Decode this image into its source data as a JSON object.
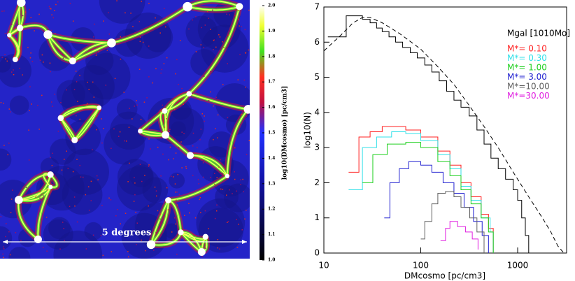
{
  "chart_data": [
    {
      "type": "image",
      "annotation": "5 degrees",
      "colorbar": {
        "label": "log10(DMcosmo) [pc/cm3]",
        "lim": [
          1,
          2
        ],
        "ticks": [
          {
            "value": 1,
            "label": "1.0"
          },
          1.1,
          1.2,
          1.3,
          1.4,
          1.5,
          1.6,
          1.7,
          1.8,
          1.9,
          {
            "value": 2,
            "label": "2.0"
          }
        ]
      }
    },
    {
      "type": "line",
      "step": true,
      "log_x": true,
      "xlabel": "DMcosmo [pc/cm3]",
      "ylabel": "log10(N)",
      "legend_title": "Mgal [1010Mo]",
      "xlim": [
        10,
        3200
      ],
      "xticks": [
        10,
        100,
        1000
      ],
      "ylim": [
        0,
        7
      ],
      "yticks": [
        0,
        1,
        2,
        3,
        4,
        5,
        6,
        7
      ],
      "series": [
        {
          "color": "#000000",
          "x": [
            11,
            17,
            25,
            30,
            35,
            40,
            47,
            55,
            65,
            78,
            92,
            110,
            130,
            155,
            185,
            220,
            260,
            316,
            380,
            450,
            530,
            630,
            750,
            900,
            1000,
            1100,
            1200,
            1300
          ],
          "values": [
            6.15,
            6.75,
            6.65,
            6.55,
            6.4,
            6.3,
            6.15,
            6.0,
            5.85,
            5.7,
            5.55,
            5.35,
            5.15,
            4.9,
            4.6,
            4.35,
            4.15,
            3.9,
            3.5,
            3.1,
            2.7,
            2.4,
            2.1,
            1.8,
            1.5,
            1.0,
            0.5,
            0
          ]
        },
        {
          "color": "#000000",
          "dashed": true,
          "x": [
            10,
            15,
            20,
            25,
            30,
            40,
            60,
            100,
            150,
            220,
            316,
            450,
            630,
            900,
            1300,
            1800,
            2200,
            2600,
            3000
          ],
          "values": [
            5.75,
            6.2,
            6.55,
            6.7,
            6.7,
            6.55,
            6.25,
            5.8,
            5.3,
            4.8,
            4.2,
            3.6,
            3.0,
            2.3,
            1.6,
            1.0,
            0.6,
            0.2,
            0
          ]
        },
        {
          "name": "M*= 0.10",
          "color": "#ff2020",
          "x": [
            18,
            23,
            30,
            40,
            55,
            70,
            100,
            150,
            200,
            260,
            330,
            420,
            500,
            560
          ],
          "values": [
            2.3,
            3.3,
            3.45,
            3.6,
            3.6,
            3.5,
            3.3,
            2.9,
            2.5,
            2.0,
            1.6,
            1.1,
            0.7,
            0
          ]
        },
        {
          "name": "M*= 0.30",
          "color": "#30e0e8",
          "x": [
            18,
            25,
            35,
            50,
            70,
            100,
            150,
            200,
            260,
            330,
            420,
            520,
            560
          ],
          "values": [
            1.8,
            3.0,
            3.3,
            3.45,
            3.4,
            3.2,
            2.8,
            2.4,
            1.9,
            1.5,
            1.0,
            0.6,
            0
          ]
        },
        {
          "name": "M*= 1.00",
          "color": "#20d020",
          "x": [
            25,
            32,
            45,
            70,
            100,
            150,
            200,
            260,
            330,
            420,
            500,
            560
          ],
          "values": [
            2.0,
            2.8,
            3.1,
            3.15,
            3.0,
            2.6,
            2.2,
            1.8,
            1.4,
            1.0,
            0.6,
            0
          ]
        },
        {
          "name": "M*= 3.00",
          "color": "#2020d0",
          "x": [
            42,
            48,
            60,
            75,
            100,
            130,
            170,
            220,
            280,
            350,
            430,
            500
          ],
          "values": [
            1.0,
            2.0,
            2.4,
            2.6,
            2.5,
            2.3,
            2.0,
            1.7,
            1.3,
            0.9,
            0.5,
            0
          ]
        },
        {
          "name": "M*=10.00",
          "color": "#606060",
          "x": [
            100,
            110,
            130,
            150,
            180,
            220,
            260,
            320,
            380,
            450
          ],
          "values": [
            0.4,
            0.9,
            1.4,
            1.7,
            1.75,
            1.6,
            1.3,
            1.0,
            0.6,
            0
          ]
        },
        {
          "name": "M*=30.00",
          "color": "#e020e0",
          "x": [
            160,
            180,
            200,
            240,
            290,
            340,
            390
          ],
          "values": [
            0.35,
            0.7,
            0.9,
            0.75,
            0.6,
            0.4,
            0.1
          ]
        }
      ]
    }
  ]
}
